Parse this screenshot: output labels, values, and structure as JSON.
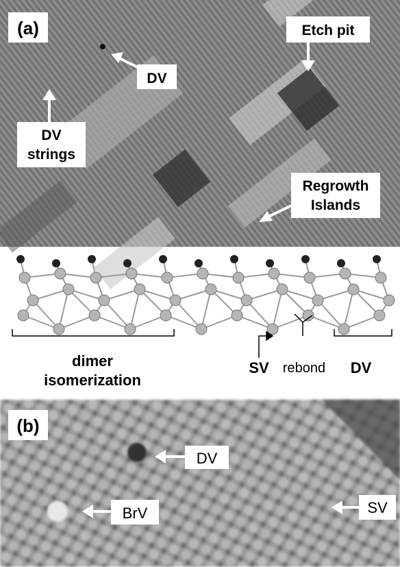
{
  "panels": {
    "a": {
      "label": "(a)",
      "annotations": [
        {
          "lines": [
            "Etch pit"
          ]
        },
        {
          "lines": [
            "DV"
          ]
        },
        {
          "lines": [
            "DV",
            "strings"
          ]
        },
        {
          "lines": [
            "Regrowth",
            "Islands"
          ]
        }
      ]
    },
    "model": {
      "annotations": [
        {
          "lines": [
            "dimer",
            "isomerization"
          ]
        },
        {
          "lines": [
            "SV"
          ]
        },
        {
          "lines": [
            "rebond"
          ]
        },
        {
          "lines": [
            "DV"
          ]
        }
      ]
    },
    "b": {
      "label": "(b)",
      "annotations": [
        {
          "lines": [
            "DV"
          ]
        },
        {
          "lines": [
            "BrV"
          ]
        },
        {
          "lines": [
            "SV"
          ]
        }
      ]
    }
  }
}
